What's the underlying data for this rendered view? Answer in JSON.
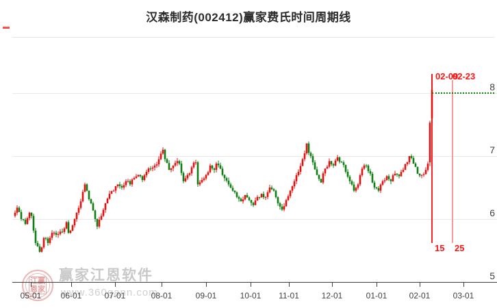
{
  "title": "汉森制药(002412)赢家费氏时间周期线",
  "watermark": {
    "brand": "赢家江恩软件",
    "url": "www.360gann.com",
    "logo_rows": [
      "江赢",
      "恩家"
    ]
  },
  "chart_data": {
    "type": "candlestick",
    "title": "汉森制药(002412)赢家费氏时间周期线",
    "security": {
      "name": "汉森制药",
      "code": "002412"
    },
    "indicator": "赢家费氏时间周期线",
    "x_axis": {
      "labels": [
        "05-01",
        "06-01",
        "07-01",
        "08-01",
        "09-01",
        "10-01",
        "11-01",
        "12-01",
        "01-01",
        "02-01",
        "03-01"
      ]
    },
    "y_axis": {
      "ticks": [
        8,
        7,
        6,
        5
      ],
      "range": [
        5,
        8.9
      ]
    },
    "grid": "horizontal",
    "legend": "none",
    "candle_count": 204,
    "first_open": 6.05,
    "close_waypoints": [
      [
        0,
        6.1
      ],
      [
        1,
        6.18
      ],
      [
        3,
        6.0
      ],
      [
        5,
        5.92
      ],
      [
        7,
        6.1
      ],
      [
        8,
        6.05
      ],
      [
        10,
        5.62
      ],
      [
        12,
        5.48
      ],
      [
        13,
        5.55
      ],
      [
        14,
        5.7
      ],
      [
        16,
        5.62
      ],
      [
        18,
        5.78
      ],
      [
        20,
        5.75
      ],
      [
        22,
        5.8
      ],
      [
        24,
        5.85
      ],
      [
        25,
        5.95
      ],
      [
        26,
        5.78
      ],
      [
        28,
        5.9
      ],
      [
        30,
        6.1
      ],
      [
        32,
        6.28
      ],
      [
        34,
        6.55
      ],
      [
        35,
        6.45
      ],
      [
        37,
        6.25
      ],
      [
        39,
        6.0
      ],
      [
        40,
        5.88
      ],
      [
        42,
        6.05
      ],
      [
        44,
        6.25
      ],
      [
        46,
        6.4
      ],
      [
        48,
        6.45
      ],
      [
        50,
        6.55
      ],
      [
        52,
        6.5
      ],
      [
        54,
        6.6
      ],
      [
        56,
        6.55
      ],
      [
        58,
        6.65
      ],
      [
        60,
        6.7
      ],
      [
        62,
        6.62
      ],
      [
        64,
        6.75
      ],
      [
        66,
        6.8
      ],
      [
        68,
        6.85
      ],
      [
        70,
        6.95
      ],
      [
        72,
        7.1
      ],
      [
        73,
        6.95
      ],
      [
        75,
        6.78
      ],
      [
        77,
        6.85
      ],
      [
        79,
        6.92
      ],
      [
        80,
        6.88
      ],
      [
        82,
        6.6
      ],
      [
        84,
        6.7
      ],
      [
        86,
        6.82
      ],
      [
        88,
        6.9
      ],
      [
        89,
        6.55
      ],
      [
        91,
        6.62
      ],
      [
        93,
        6.7
      ],
      [
        95,
        6.85
      ],
      [
        97,
        6.78
      ],
      [
        98,
        6.88
      ],
      [
        100,
        6.8
      ],
      [
        102,
        6.65
      ],
      [
        104,
        6.55
      ],
      [
        106,
        6.45
      ],
      [
        108,
        6.35
      ],
      [
        110,
        6.28
      ],
      [
        112,
        6.38
      ],
      [
        114,
        6.3
      ],
      [
        116,
        6.22
      ],
      [
        118,
        6.35
      ],
      [
        120,
        6.4
      ],
      [
        122,
        6.35
      ],
      [
        124,
        6.5
      ],
      [
        126,
        6.45
      ],
      [
        128,
        6.25
      ],
      [
        130,
        6.15
      ],
      [
        132,
        6.3
      ],
      [
        134,
        6.45
      ],
      [
        136,
        6.6
      ],
      [
        138,
        6.75
      ],
      [
        140,
        6.95
      ],
      [
        142,
        7.2
      ],
      [
        143,
        7.05
      ],
      [
        145,
        6.9
      ],
      [
        147,
        6.7
      ],
      [
        149,
        6.58
      ],
      [
        151,
        6.8
      ],
      [
        153,
        6.92
      ],
      [
        155,
        6.85
      ],
      [
        157,
        6.98
      ],
      [
        159,
        6.9
      ],
      [
        161,
        6.75
      ],
      [
        163,
        6.6
      ],
      [
        165,
        6.45
      ],
      [
        167,
        6.55
      ],
      [
        169,
        6.8
      ],
      [
        171,
        6.85
      ],
      [
        173,
        6.72
      ],
      [
        175,
        6.5
      ],
      [
        177,
        6.45
      ],
      [
        179,
        6.6
      ],
      [
        181,
        6.68
      ],
      [
        183,
        6.6
      ],
      [
        185,
        6.72
      ],
      [
        187,
        6.68
      ],
      [
        189,
        6.78
      ],
      [
        191,
        6.9
      ],
      [
        192,
        7.0
      ],
      [
        194,
        6.88
      ],
      [
        196,
        6.72
      ],
      [
        198,
        6.7
      ],
      [
        200,
        6.78
      ],
      [
        201,
        6.88
      ],
      [
        202,
        7.53
      ],
      [
        203,
        8.05
      ]
    ],
    "final_candles": [
      {
        "index": 202,
        "open": 6.9,
        "close": 7.53,
        "high": 7.56,
        "low": 6.84
      },
      {
        "index": 203,
        "open": 7.6,
        "close": 8.05,
        "high": 8.3,
        "low": 7.52
      }
    ],
    "fib_time_cycles": [
      {
        "date": "02-09",
        "trading_day_count": "15"
      },
      {
        "date": "02-23",
        "trading_day_count": "25"
      }
    ],
    "level_line": {
      "price": 8.01,
      "style": "dotted"
    },
    "colors": {
      "up": "#e31010",
      "down": "#0f7e12",
      "cycle_line": "#ff2222",
      "cycle_line_light": "#ff9898",
      "cycle_label": "#ff1414",
      "level_line": "#0a8a0a",
      "grid": "#e9e9e9",
      "axis": "#3c3c3c",
      "tick_label": "#3f3f3f",
      "title": "#2b2b2b",
      "watermark_text": "#c9c9c9",
      "watermark_logo": "#edb5b5"
    }
  }
}
